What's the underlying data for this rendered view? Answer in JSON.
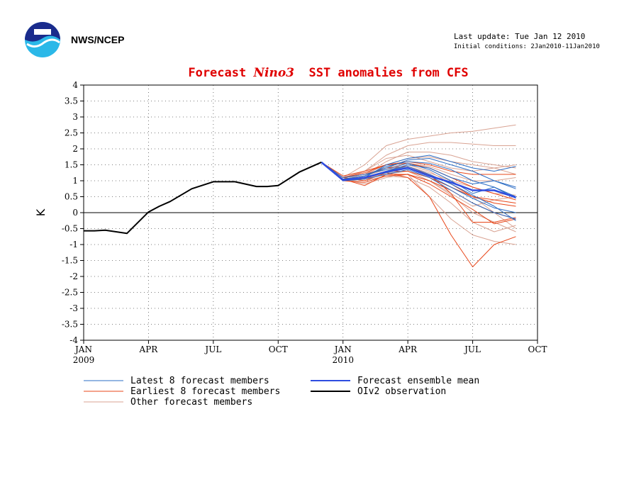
{
  "header": {
    "org": "NWS/NCEP",
    "last_update": "Last update: Tue Jan 12 2010",
    "initial_conditions": "Initial conditions: 2Jan2010-11Jan2010"
  },
  "colors": {
    "latest": "#2b6cc4",
    "earliest": "#e8471a",
    "other": "#d9a393",
    "mean": "#2e4de0",
    "obs": "#000000",
    "title": "#e00000"
  },
  "chart_data": {
    "type": "line",
    "title_parts": [
      "Forecast ",
      "Nino3",
      "  SST anomalies from CFS"
    ],
    "ylabel": "K",
    "ylim": [
      -4,
      4
    ],
    "yticks": [
      "4",
      "3.5",
      "3",
      "2.5",
      "2",
      "1.5",
      "1",
      "0.5",
      "0",
      "-0.5",
      "-1",
      "-1.5",
      "-2",
      "-2.5",
      "-3",
      "-3.5",
      "-4"
    ],
    "xlim": [
      0,
      21
    ],
    "xticks": [
      {
        "x": 0,
        "label": "JAN",
        "sub": "2009"
      },
      {
        "x": 3,
        "label": "APR",
        "sub": ""
      },
      {
        "x": 6,
        "label": "JUL",
        "sub": ""
      },
      {
        "x": 9,
        "label": "OCT",
        "sub": ""
      },
      {
        "x": 12,
        "label": "JAN",
        "sub": "2010"
      },
      {
        "x": 15,
        "label": "APR",
        "sub": ""
      },
      {
        "x": 18,
        "label": "JUL",
        "sub": ""
      },
      {
        "x": 21,
        "label": "OCT",
        "sub": ""
      }
    ],
    "forecast_x": [
      11,
      12,
      13,
      14,
      15,
      16,
      17,
      18,
      19,
      20
    ],
    "observation": {
      "name": "OIv2 observation",
      "x": [
        0,
        0.5,
        1,
        1.5,
        2,
        3,
        3.5,
        4,
        5,
        6,
        7,
        8,
        8.5,
        9,
        10,
        11
      ],
      "values": [
        -0.57,
        -0.57,
        -0.55,
        -0.6,
        -0.65,
        0.02,
        0.2,
        0.35,
        0.75,
        0.97,
        0.97,
        0.82,
        0.82,
        0.85,
        1.28,
        1.58
      ]
    },
    "ensemble_mean": {
      "name": "Forecast ensemble mean",
      "values": [
        1.58,
        1.02,
        1.1,
        1.28,
        1.4,
        1.15,
        0.95,
        0.7,
        0.7,
        0.48
      ]
    },
    "latest": {
      "name": "Latest 8 forecast members",
      "members": [
        [
          1.58,
          1.05,
          1.15,
          1.45,
          1.6,
          1.55,
          1.35,
          1.0,
          0.8,
          0.45
        ],
        [
          1.58,
          1.0,
          1.1,
          1.5,
          1.7,
          1.8,
          1.6,
          1.4,
          1.3,
          1.45
        ],
        [
          1.58,
          1.05,
          1.08,
          1.3,
          1.45,
          1.2,
          0.9,
          0.55,
          0.2,
          -0.25
        ],
        [
          1.58,
          1.1,
          1.2,
          1.35,
          1.55,
          1.35,
          1.0,
          0.6,
          0.8,
          0.5
        ],
        [
          1.58,
          1.0,
          1.05,
          1.2,
          1.35,
          1.1,
          0.7,
          0.3,
          0.0,
          -0.2
        ],
        [
          1.58,
          1.05,
          1.15,
          1.4,
          1.65,
          1.7,
          1.5,
          1.3,
          1.0,
          0.8
        ],
        [
          1.58,
          1.05,
          1.1,
          1.3,
          1.5,
          1.4,
          1.1,
          0.9,
          1.0,
          0.75
        ],
        [
          1.58,
          1.0,
          1.1,
          1.25,
          1.4,
          1.15,
          0.8,
          0.45,
          0.15,
          0.0
        ]
      ]
    },
    "earliest": {
      "name": "Earliest 8 forecast members",
      "members": [
        [
          1.58,
          1.1,
          1.0,
          1.25,
          1.1,
          0.5,
          -0.7,
          -1.7,
          -1.0,
          -0.75
        ],
        [
          1.58,
          1.05,
          0.85,
          1.2,
          1.2,
          0.9,
          0.5,
          0.1,
          -0.35,
          -0.2
        ],
        [
          1.58,
          1.1,
          1.2,
          1.4,
          1.45,
          1.2,
          0.9,
          0.5,
          0.4,
          0.3
        ],
        [
          1.58,
          1.15,
          1.3,
          1.5,
          1.55,
          1.4,
          1.1,
          0.8,
          0.6,
          0.4
        ],
        [
          1.58,
          1.0,
          0.95,
          1.15,
          1.2,
          1.0,
          0.7,
          0.3,
          0.0,
          -0.2
        ],
        [
          1.58,
          1.1,
          1.25,
          1.5,
          1.6,
          1.5,
          1.3,
          1.2,
          1.2,
          1.2
        ],
        [
          1.58,
          1.05,
          1.1,
          1.3,
          1.3,
          1.1,
          0.8,
          0.5,
          0.3,
          0.2
        ],
        [
          1.58,
          1.05,
          1.05,
          1.3,
          1.4,
          1.2,
          0.6,
          -0.3,
          -0.3,
          -0.15
        ]
      ]
    },
    "others": {
      "name": "Other forecast members",
      "members": [
        [
          1.58,
          1.1,
          1.5,
          2.1,
          2.3,
          2.4,
          2.5,
          2.55,
          2.65,
          2.75
        ],
        [
          1.58,
          1.05,
          1.3,
          1.8,
          2.1,
          2.2,
          2.2,
          2.15,
          2.1,
          2.1
        ],
        [
          1.58,
          1.1,
          1.2,
          1.6,
          1.9,
          1.9,
          1.8,
          1.6,
          1.5,
          1.4
        ],
        [
          1.58,
          1.0,
          1.05,
          1.3,
          1.5,
          1.3,
          0.9,
          0.5,
          0.0,
          -0.5
        ],
        [
          1.58,
          1.05,
          0.9,
          1.1,
          1.2,
          0.5,
          -0.2,
          -0.7,
          -0.9,
          -1.0
        ],
        [
          1.58,
          1.1,
          1.15,
          1.4,
          1.55,
          1.45,
          1.2,
          1.0,
          1.0,
          1.1
        ],
        [
          1.58,
          1.0,
          1.1,
          1.2,
          1.3,
          1.0,
          0.6,
          0.2,
          0.4,
          0.5
        ],
        [
          1.58,
          1.1,
          1.3,
          1.7,
          1.8,
          1.6,
          1.4,
          1.3,
          1.4,
          1.5
        ],
        [
          1.58,
          1.0,
          1.0,
          1.15,
          1.1,
          0.8,
          0.3,
          -0.3,
          -0.6,
          -0.4
        ],
        [
          1.58,
          1.05,
          1.15,
          1.35,
          1.45,
          1.25,
          1.0,
          0.8,
          0.6,
          0.55
        ],
        [
          1.58,
          1.1,
          1.2,
          1.5,
          1.7,
          1.75,
          1.6,
          1.5,
          1.4,
          1.2
        ],
        [
          1.58,
          1.0,
          1.1,
          1.25,
          1.3,
          1.0,
          0.55,
          0.0,
          -0.3,
          -0.6
        ]
      ]
    },
    "legend": {
      "latest": "Latest 8 forecast members",
      "earliest": "Earliest 8 forecast members",
      "other": "Other forecast members",
      "mean": "Forecast ensemble mean",
      "obs": "OIv2 observation"
    }
  }
}
